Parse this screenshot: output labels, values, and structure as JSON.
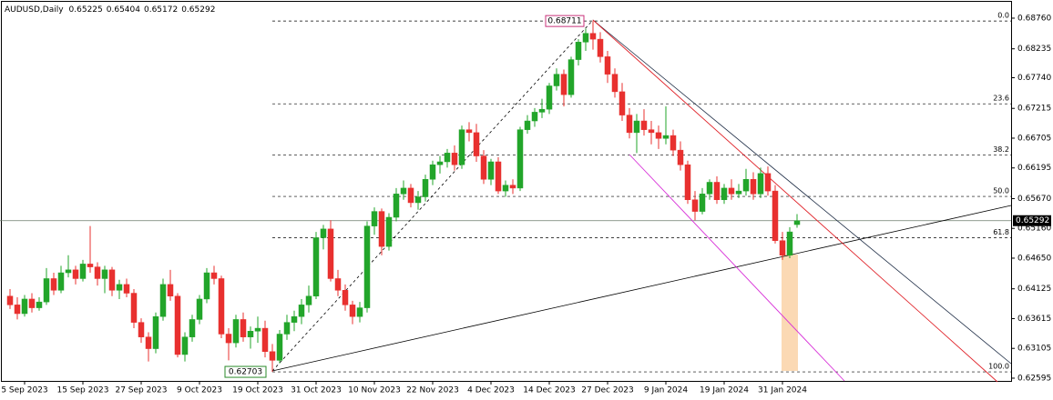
{
  "chart_data": {
    "type": "candlestick",
    "title": "AUDUSD,Daily",
    "up_color": "#22a52a",
    "down_color": "#e8302f",
    "ylim": [
      0.62548,
      0.69071
    ],
    "yticks": [
      {
        "value": 0.6876,
        "label": "0.68760"
      },
      {
        "value": 0.68235,
        "label": "0.68235"
      },
      {
        "value": 0.6774,
        "label": "0.67740"
      },
      {
        "value": 0.67215,
        "label": "0.67215"
      },
      {
        "value": 0.66705,
        "label": "0.66705"
      },
      {
        "value": 0.66195,
        "label": "0.66195"
      },
      {
        "value": 0.6567,
        "label": "0.65670"
      },
      {
        "value": 0.6516,
        "label": "0.65160"
      },
      {
        "value": 0.6465,
        "label": "0.64650"
      },
      {
        "value": 0.64125,
        "label": "0.64125"
      },
      {
        "value": 0.63615,
        "label": "0.63615"
      },
      {
        "value": 0.63105,
        "label": "0.63105"
      },
      {
        "value": 0.62595,
        "label": "0.62595"
      }
    ],
    "fib_levels": [
      {
        "value": 0,
        "label": "0.0"
      },
      23.6,
      38.2,
      {
        "value": 50,
        "label": "50.0"
      },
      61.8,
      {
        "value": 100,
        "label": "100.0"
      }
    ],
    "categories": [
      null,
      null,
      "5 Sep 2023",
      null,
      null,
      null,
      null,
      null,
      null,
      null,
      "15 Sep 2023",
      null,
      null,
      null,
      null,
      null,
      null,
      null,
      "27 Sep 2023",
      null,
      null,
      null,
      null,
      null,
      null,
      null,
      "9 Oct 2023",
      null,
      null,
      null,
      null,
      null,
      null,
      null,
      "19 Oct 2023",
      null,
      null,
      null,
      null,
      null,
      null,
      null,
      "31 Oct 2023",
      null,
      null,
      null,
      null,
      null,
      null,
      null,
      "10 Nov 2023",
      null,
      null,
      null,
      null,
      null,
      null,
      null,
      "22 Nov 2023",
      null,
      null,
      null,
      null,
      null,
      null,
      null,
      "4 Dec 2023",
      null,
      null,
      null,
      null,
      null,
      null,
      null,
      "14 Dec 2023",
      null,
      null,
      null,
      null,
      null,
      null,
      null,
      "27 Dec 2023",
      null,
      null,
      null,
      null,
      null,
      null,
      null,
      "9 Jan 2024",
      null,
      null,
      null,
      null,
      null,
      null,
      null,
      "19 Jan 2024",
      null,
      null,
      null,
      null,
      null,
      null,
      null,
      "31 Jan 2024",
      null,
      null
    ],
    "candles": [
      [
        0.64,
        0.6412,
        0.6378,
        0.6385
      ],
      [
        0.6385,
        0.6398,
        0.636,
        0.637
      ],
      [
        0.637,
        0.6402,
        0.6365,
        0.6395
      ],
      [
        0.6395,
        0.6405,
        0.6372,
        0.638
      ],
      [
        0.638,
        0.6398,
        0.6375,
        0.639
      ],
      [
        0.639,
        0.6448,
        0.6385,
        0.643
      ],
      [
        0.643,
        0.644,
        0.6402,
        0.641
      ],
      [
        0.641,
        0.6452,
        0.6405,
        0.644
      ],
      [
        0.644,
        0.647,
        0.6432,
        0.6445
      ],
      [
        0.6445,
        0.6452,
        0.642,
        0.643
      ],
      [
        0.643,
        0.6462,
        0.6425,
        0.6455
      ],
      [
        0.6455,
        0.652,
        0.644,
        0.645
      ],
      [
        0.645,
        0.6458,
        0.6418,
        0.643
      ],
      [
        0.643,
        0.6452,
        0.6405,
        0.6445
      ],
      [
        0.6445,
        0.645,
        0.64,
        0.641
      ],
      [
        0.641,
        0.6428,
        0.6395,
        0.642
      ],
      [
        0.642,
        0.643,
        0.6398,
        0.6405
      ],
      [
        0.6405,
        0.6412,
        0.6345,
        0.6355
      ],
      [
        0.6355,
        0.6362,
        0.632,
        0.633
      ],
      [
        0.633,
        0.6338,
        0.6288,
        0.631
      ],
      [
        0.631,
        0.6372,
        0.6302,
        0.6365
      ],
      [
        0.6365,
        0.643,
        0.6358,
        0.642
      ],
      [
        0.642,
        0.6445,
        0.6392,
        0.64
      ],
      [
        0.64,
        0.6405,
        0.6295,
        0.63
      ],
      [
        0.63,
        0.6338,
        0.6288,
        0.633
      ],
      [
        0.633,
        0.6368,
        0.6322,
        0.636
      ],
      [
        0.636,
        0.6402,
        0.6352,
        0.6395
      ],
      [
        0.6395,
        0.6448,
        0.6388,
        0.644
      ],
      [
        0.644,
        0.6452,
        0.642,
        0.643
      ],
      [
        0.643,
        0.6435,
        0.6328,
        0.6335
      ],
      [
        0.6335,
        0.6345,
        0.629,
        0.632
      ],
      [
        0.632,
        0.6368,
        0.6312,
        0.636
      ],
      [
        0.636,
        0.6372,
        0.6322,
        0.633
      ],
      [
        0.633,
        0.6348,
        0.631,
        0.634
      ],
      [
        0.634,
        0.6365,
        0.632,
        0.6345
      ],
      [
        0.6345,
        0.6358,
        0.6295,
        0.6305
      ],
      [
        0.6305,
        0.6318,
        0.62703,
        0.629
      ],
      [
        0.629,
        0.6342,
        0.6285,
        0.6335
      ],
      [
        0.6335,
        0.6368,
        0.6325,
        0.6355
      ],
      [
        0.6355,
        0.6375,
        0.634,
        0.6365
      ],
      [
        0.6365,
        0.6395,
        0.6352,
        0.6385
      ],
      [
        0.6385,
        0.6418,
        0.6372,
        0.64
      ],
      [
        0.64,
        0.651,
        0.6395,
        0.65
      ],
      [
        0.65,
        0.6522,
        0.648,
        0.6515
      ],
      [
        0.6515,
        0.653,
        0.6425,
        0.643
      ],
      [
        0.643,
        0.6445,
        0.64,
        0.641
      ],
      [
        0.641,
        0.642,
        0.6375,
        0.6385
      ],
      [
        0.6385,
        0.6392,
        0.6352,
        0.6365
      ],
      [
        0.6365,
        0.639,
        0.6355,
        0.638
      ],
      [
        0.638,
        0.6528,
        0.6372,
        0.652
      ],
      [
        0.652,
        0.6552,
        0.6505,
        0.6545
      ],
      [
        0.6545,
        0.655,
        0.647,
        0.6485
      ],
      [
        0.6485,
        0.6542,
        0.6478,
        0.6535
      ],
      [
        0.6535,
        0.6585,
        0.6528,
        0.6575
      ],
      [
        0.6575,
        0.6598,
        0.6565,
        0.6585
      ],
      [
        0.6585,
        0.6592,
        0.6552,
        0.656
      ],
      [
        0.656,
        0.658,
        0.6548,
        0.657
      ],
      [
        0.657,
        0.6608,
        0.6562,
        0.66
      ],
      [
        0.66,
        0.6632,
        0.659,
        0.6625
      ],
      [
        0.6625,
        0.664,
        0.661,
        0.663
      ],
      [
        0.663,
        0.6652,
        0.662,
        0.6645
      ],
      [
        0.6645,
        0.6658,
        0.6615,
        0.6625
      ],
      [
        0.6625,
        0.6692,
        0.6618,
        0.6685
      ],
      [
        0.6685,
        0.6698,
        0.6665,
        0.668
      ],
      [
        0.668,
        0.6695,
        0.663,
        0.664
      ],
      [
        0.664,
        0.665,
        0.6592,
        0.66
      ],
      [
        0.66,
        0.6635,
        0.659,
        0.663
      ],
      [
        0.663,
        0.6638,
        0.6575,
        0.658
      ],
      [
        0.658,
        0.6598,
        0.657,
        0.659
      ],
      [
        0.659,
        0.66,
        0.6575,
        0.6585
      ],
      [
        0.6585,
        0.669,
        0.658,
        0.6685
      ],
      [
        0.6685,
        0.671,
        0.6678,
        0.67
      ],
      [
        0.67,
        0.6722,
        0.669,
        0.6715
      ],
      [
        0.6715,
        0.6738,
        0.6705,
        0.672
      ],
      [
        0.672,
        0.6765,
        0.6712,
        0.676
      ],
      [
        0.676,
        0.679,
        0.6752,
        0.678
      ],
      [
        0.678,
        0.6788,
        0.6725,
        0.6745
      ],
      [
        0.6745,
        0.681,
        0.674,
        0.6805
      ],
      [
        0.6805,
        0.684,
        0.6795,
        0.6835
      ],
      [
        0.6835,
        0.6858,
        0.682,
        0.685
      ],
      [
        0.685,
        0.68711,
        0.6822,
        0.684
      ],
      [
        0.684,
        0.6852,
        0.68,
        0.681
      ],
      [
        0.681,
        0.682,
        0.6765,
        0.678
      ],
      [
        0.678,
        0.679,
        0.674,
        0.675
      ],
      [
        0.675,
        0.6765,
        0.67,
        0.671
      ],
      [
        0.671,
        0.6722,
        0.667,
        0.668
      ],
      [
        0.668,
        0.6712,
        0.6645,
        0.67
      ],
      [
        0.67,
        0.672,
        0.6675,
        0.6685
      ],
      [
        0.6685,
        0.67,
        0.666,
        0.668
      ],
      [
        0.668,
        0.6692,
        0.6652,
        0.667
      ],
      [
        0.667,
        0.6725,
        0.666,
        0.6675
      ],
      [
        0.6675,
        0.6685,
        0.664,
        0.665
      ],
      [
        0.665,
        0.6665,
        0.6615,
        0.6625
      ],
      [
        0.6625,
        0.6632,
        0.6558,
        0.6565
      ],
      [
        0.6565,
        0.658,
        0.653,
        0.6545
      ],
      [
        0.6545,
        0.6585,
        0.654,
        0.6575
      ],
      [
        0.6575,
        0.66,
        0.6565,
        0.6595
      ],
      [
        0.6595,
        0.6605,
        0.6558,
        0.6565
      ],
      [
        0.6565,
        0.6592,
        0.6558,
        0.6585
      ],
      [
        0.6585,
        0.66,
        0.6565,
        0.6575
      ],
      [
        0.6575,
        0.6592,
        0.6568,
        0.658
      ],
      [
        0.658,
        0.6618,
        0.6572,
        0.66
      ],
      [
        0.66,
        0.6612,
        0.6565,
        0.6575
      ],
      [
        0.6575,
        0.662,
        0.6568,
        0.661
      ],
      [
        0.661,
        0.6622,
        0.6572,
        0.658
      ],
      [
        0.658,
        0.659,
        0.649,
        0.6495
      ],
      [
        0.6495,
        0.651,
        0.6462,
        0.647
      ],
      [
        0.647,
        0.6518,
        0.6465,
        0.651
      ],
      [
        0.65225,
        0.65404,
        0.65172,
        0.65292
      ]
    ]
  }
}
